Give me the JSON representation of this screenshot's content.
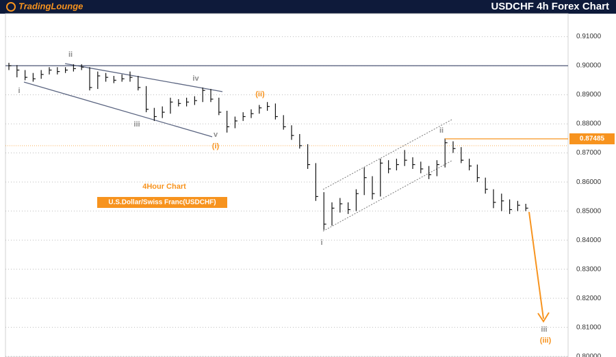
{
  "brand": "TradingLounge",
  "chart_data": {
    "type": "ohlc",
    "title": "USDCHF 4h Forex Chart",
    "subtitle": "4Hour Chart",
    "instrument": "U.S.Dollar/Swiss Franc(USDCHF)",
    "close": [
      0.9,
      0.8985,
      0.896,
      0.8955,
      0.897,
      0.8985,
      0.898,
      0.8985,
      0.899,
      0.8995,
      0.8925,
      0.8965,
      0.896,
      0.895,
      0.8955,
      0.896,
      0.8925,
      0.885,
      0.8825,
      0.884,
      0.8875,
      0.887,
      0.8875,
      0.888,
      0.8915,
      0.8885,
      0.884,
      0.879,
      0.881,
      0.8825,
      0.8835,
      0.8855,
      0.886,
      0.8825,
      0.879,
      0.876,
      0.8725,
      0.866,
      0.855,
      0.8455,
      0.851,
      0.8525,
      0.8505,
      0.856,
      0.8615,
      0.856,
      0.8665,
      0.8645,
      0.866,
      0.8675,
      0.866,
      0.8645,
      0.8625,
      0.866,
      0.8735,
      0.8715,
      0.8675,
      0.8655,
      0.8615,
      0.8575,
      0.853,
      0.8535,
      0.8505,
      0.852,
      0.851
    ],
    "high": [
      0.901,
      0.9002,
      0.8985,
      0.8975,
      0.8985,
      0.8995,
      0.8995,
      0.8995,
      0.9005,
      0.9005,
      0.8995,
      0.898,
      0.8975,
      0.8965,
      0.897,
      0.898,
      0.8965,
      0.893,
      0.8855,
      0.886,
      0.889,
      0.8885,
      0.889,
      0.8895,
      0.8925,
      0.892,
      0.889,
      0.8845,
      0.8825,
      0.884,
      0.885,
      0.8865,
      0.8875,
      0.887,
      0.883,
      0.8795,
      0.8765,
      0.873,
      0.8665,
      0.8565,
      0.853,
      0.8545,
      0.853,
      0.8575,
      0.865,
      0.862,
      0.868,
      0.8675,
      0.868,
      0.871,
      0.8685,
      0.867,
      0.8655,
      0.8675,
      0.875,
      0.874,
      0.872,
      0.868,
      0.866,
      0.8615,
      0.8575,
      0.856,
      0.854,
      0.8535,
      0.8525
    ],
    "low": [
      0.8985,
      0.896,
      0.895,
      0.8945,
      0.8955,
      0.897,
      0.897,
      0.8975,
      0.898,
      0.8985,
      0.8915,
      0.892,
      0.8945,
      0.894,
      0.8945,
      0.8945,
      0.8915,
      0.884,
      0.881,
      0.882,
      0.8835,
      0.886,
      0.886,
      0.8865,
      0.8875,
      0.8875,
      0.883,
      0.877,
      0.8785,
      0.881,
      0.882,
      0.8835,
      0.8845,
      0.8815,
      0.878,
      0.8745,
      0.8715,
      0.8645,
      0.8535,
      0.8435,
      0.845,
      0.8495,
      0.849,
      0.85,
      0.8555,
      0.854,
      0.855,
      0.863,
      0.864,
      0.8655,
      0.8645,
      0.863,
      0.861,
      0.862,
      0.865,
      0.87,
      0.8665,
      0.864,
      0.86,
      0.856,
      0.851,
      0.85,
      0.849,
      0.85,
      0.85
    ],
    "ylim": [
      0.7998,
      0.9179
    ],
    "yticks": [
      {
        "value": 0.91,
        "label": "0.91000"
      },
      {
        "value": 0.9,
        "label": "0.90000"
      },
      {
        "value": 0.89,
        "label": "0.89000"
      },
      {
        "value": 0.88,
        "label": "0.88000"
      },
      {
        "value": 0.87,
        "label": "0.87000"
      },
      {
        "value": 0.86,
        "label": "0.86000"
      },
      {
        "value": 0.85,
        "label": "0.85000"
      },
      {
        "value": 0.84,
        "label": "0.84000"
      },
      {
        "value": 0.83,
        "label": "0.83000"
      },
      {
        "value": 0.82,
        "label": "0.82000"
      },
      {
        "value": 0.81,
        "label": "0.81000"
      },
      {
        "value": 0.8,
        "label": "0.80000"
      }
    ],
    "grid": true,
    "color": "#111111",
    "current_price": 0.87485,
    "price_color": "#f7931e",
    "key_level": 0.9,
    "orange_level": 0.8725,
    "wave_labels": [
      {
        "text": "ii",
        "color": "#8c8c8c"
      },
      {
        "text": "i",
        "color": "#8c8c8c"
      },
      {
        "text": "iv",
        "color": "#8c8c8c"
      },
      {
        "text": "iii",
        "color": "#8c8c8c"
      },
      {
        "text": "v",
        "color": "#8c8c8c"
      },
      {
        "text": "(i)",
        "color": "#f7931e"
      },
      {
        "text": "(ii)",
        "color": "#f7931e"
      },
      {
        "text": "i",
        "color": "#8c8c8c"
      },
      {
        "text": "ii",
        "color": "#8c8c8c"
      },
      {
        "text": "iii",
        "color": "#8c8c8c"
      },
      {
        "text": "(iii)",
        "color": "#f7931e"
      }
    ]
  }
}
